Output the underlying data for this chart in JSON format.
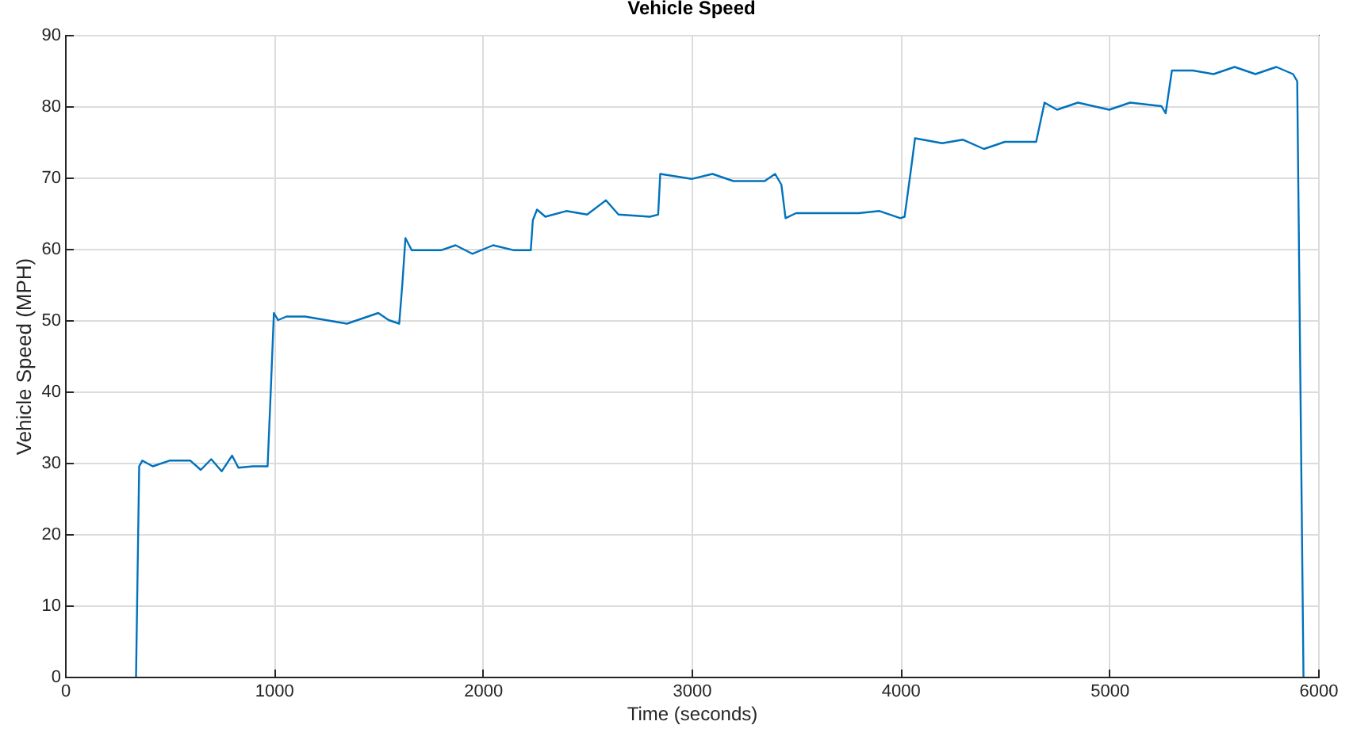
{
  "chart_data": {
    "type": "line",
    "title": "Vehicle Speed",
    "xlabel": "Time (seconds)",
    "ylabel": "Vehicle Speed (MPH)",
    "x": [
      340,
      355,
      370,
      420,
      500,
      600,
      650,
      700,
      750,
      800,
      830,
      900,
      970,
      985,
      1000,
      1020,
      1060,
      1150,
      1250,
      1350,
      1450,
      1500,
      1550,
      1600,
      1615,
      1630,
      1660,
      1800,
      1870,
      1950,
      2050,
      2150,
      2230,
      2240,
      2260,
      2300,
      2400,
      2500,
      2590,
      2650,
      2800,
      2840,
      2850,
      3000,
      3100,
      3200,
      3350,
      3400,
      3430,
      3450,
      3500,
      3600,
      3800,
      3900,
      4000,
      4020,
      4050,
      4070,
      4200,
      4300,
      4400,
      4500,
      4650,
      4690,
      4750,
      4850,
      5000,
      5100,
      5250,
      5270,
      5300,
      5400,
      5500,
      5600,
      5700,
      5800,
      5880,
      5900,
      5930
    ],
    "series": [
      {
        "color": "#0072bd",
        "values": [
          0,
          29.5,
          30.3,
          29.5,
          30.3,
          30.3,
          29,
          30.5,
          28.8,
          31,
          29.3,
          29.5,
          29.5,
          40,
          51,
          50,
          50.5,
          50.5,
          50,
          49.5,
          50.5,
          51,
          50,
          49.5,
          55,
          61.5,
          59.8,
          59.8,
          60.5,
          59.3,
          60.5,
          59.8,
          59.8,
          64,
          65.5,
          64.5,
          65.3,
          64.8,
          66.8,
          64.8,
          64.5,
          64.8,
          70.5,
          69.8,
          70.5,
          69.5,
          69.5,
          70.5,
          69,
          64.3,
          65,
          65,
          65,
          65.3,
          64.3,
          64.5,
          71,
          75.5,
          74.8,
          75.3,
          74,
          75,
          75,
          80.5,
          79.5,
          80.5,
          79.5,
          80.5,
          80,
          79,
          85,
          85,
          84.5,
          85.5,
          84.5,
          85.5,
          84.5,
          83.5,
          0
        ]
      }
    ],
    "xlim": [
      0,
      6000
    ],
    "xticks": [
      0,
      1000,
      2000,
      3000,
      4000,
      5000,
      6000
    ],
    "ylim": [
      0,
      90
    ],
    "yticks": [
      0,
      10,
      20,
      30,
      40,
      50,
      60,
      70,
      80,
      90
    ],
    "grid": true,
    "marker": "none",
    "line_style": "solid"
  }
}
